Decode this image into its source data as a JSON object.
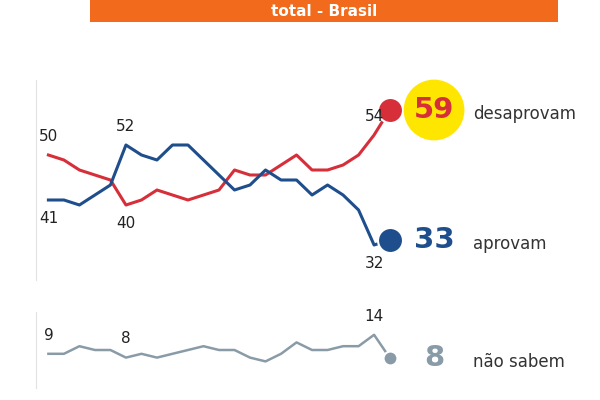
{
  "chart_data": [
    {
      "type": "line",
      "title": "total - Brasil",
      "categories": [
        null,
        null,
        null,
        null,
        null,
        null,
        null,
        null,
        null,
        null,
        null,
        null,
        null,
        null,
        null,
        null,
        null,
        null,
        null,
        null,
        null,
        null,
        null
      ],
      "ylim": [
        25,
        65
      ],
      "yticks": [],
      "tick_labels": false,
      "data_labels": true,
      "series": [
        {
          "name": "desaprovam",
          "color": "#d62f3a",
          "line_style": "solid",
          "values": [
            50,
            49,
            47,
            46,
            45,
            40,
            41,
            43,
            42,
            41,
            42,
            43,
            47,
            46,
            46,
            48,
            50,
            47,
            47,
            48,
            50,
            54,
            59
          ],
          "value_labels": [
            "50",
            null,
            null,
            null,
            null,
            "40",
            null,
            null,
            null,
            null,
            null,
            null,
            null,
            null,
            null,
            null,
            null,
            null,
            null,
            null,
            null,
            "54",
            "59"
          ]
        },
        {
          "name": "aprovam",
          "color": "#1f4e8c",
          "line_style": "solid",
          "values": [
            41,
            41,
            40,
            42,
            44,
            52,
            50,
            49,
            52,
            52,
            49,
            46,
            43,
            44,
            47,
            45,
            45,
            42,
            44,
            42,
            39,
            32,
            33
          ],
          "value_labels": [
            "41",
            null,
            null,
            null,
            null,
            "52",
            null,
            null,
            null,
            null,
            null,
            null,
            null,
            null,
            null,
            null,
            null,
            null,
            null,
            null,
            null,
            "32",
            "33"
          ]
        }
      ]
    },
    {
      "type": "line",
      "categories": [
        null,
        null,
        null,
        null,
        null,
        null,
        null,
        null,
        null,
        null,
        null,
        null,
        null,
        null,
        null,
        null,
        null,
        null,
        null,
        null,
        null,
        null,
        null
      ],
      "ylim": [
        0,
        20
      ],
      "yticks": [],
      "tick_labels": false,
      "data_labels": true,
      "series": [
        {
          "name": "não sabem",
          "color": "#8a9ba8",
          "line_style": "solid",
          "values": [
            9,
            9,
            11,
            10,
            10,
            8,
            9,
            8,
            9,
            10,
            11,
            10,
            10,
            8,
            7,
            9,
            12,
            10,
            10,
            11,
            11,
            14,
            8
          ],
          "value_labels": [
            "9",
            null,
            null,
            null,
            null,
            "8",
            null,
            null,
            null,
            null,
            null,
            null,
            null,
            null,
            null,
            null,
            null,
            null,
            null,
            null,
            null,
            "14",
            "8"
          ]
        }
      ]
    }
  ]
}
